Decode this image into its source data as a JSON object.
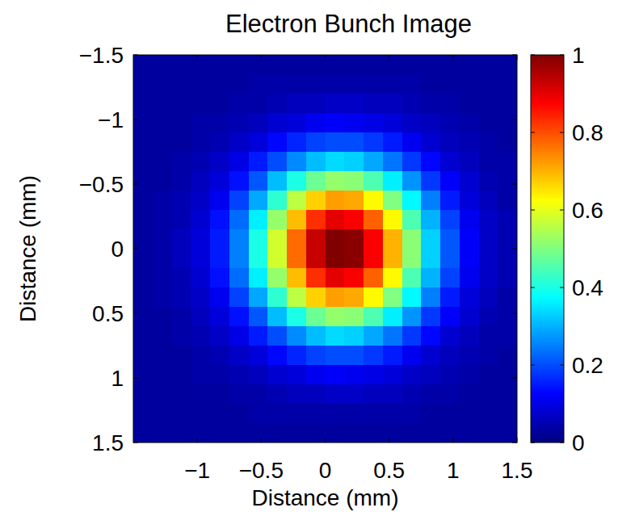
{
  "chart_data": {
    "type": "heatmap",
    "title": "Electron Bunch Image",
    "x_label": "Distance (mm)",
    "y_label": "Distance (mm)",
    "color": "jet",
    "xlim": [
      -1.5,
      1.5
    ],
    "ylim": [
      1.5,
      -1.5
    ],
    "xticks": [
      {
        "value": -1,
        "label": "−1"
      },
      {
        "value": -0.5,
        "label": "−0.5"
      },
      0,
      0.5,
      1,
      1.5
    ],
    "yticks": [
      {
        "value": -1.5,
        "label": "−1.5"
      },
      {
        "value": -1,
        "label": "−1"
      },
      {
        "value": -0.5,
        "label": "−0.5"
      },
      0,
      0.5,
      1,
      1.5
    ],
    "x": [
      -1.425,
      -1.275,
      -1.125,
      -0.975,
      -0.825,
      -0.675,
      -0.525,
      -0.375,
      -0.225,
      -0.075,
      0.075,
      0.225,
      0.375,
      0.525,
      0.675,
      0.825,
      0.975,
      1.125,
      1.275,
      1.425
    ],
    "y": [
      -1.425,
      -1.275,
      -1.125,
      -0.975,
      -0.825,
      -0.675,
      -0.525,
      -0.375,
      -0.225,
      -0.075,
      0.075,
      0.225,
      0.375,
      0.525,
      0.675,
      0.825,
      0.975,
      1.125,
      1.275,
      1.425
    ],
    "cells": [
      [
        0.03,
        0.03,
        0.03,
        0.03,
        0.03,
        0.03,
        0.03,
        0.03,
        0.03,
        0.03,
        0.03,
        0.03,
        0.03,
        0.03,
        0.03,
        0.03,
        0.03,
        0.03,
        0.03,
        0.03
      ],
      [
        0.03,
        0.03,
        0.03,
        0.03,
        0.03,
        0.03,
        0.04,
        0.04,
        0.04,
        0.04,
        0.04,
        0.04,
        0.04,
        0.04,
        0.04,
        0.03,
        0.03,
        0.03,
        0.03,
        0.03
      ],
      [
        0.03,
        0.03,
        0.03,
        0.03,
        0.03,
        0.04,
        0.04,
        0.05,
        0.06,
        0.06,
        0.07,
        0.07,
        0.06,
        0.06,
        0.05,
        0.04,
        0.04,
        0.03,
        0.03,
        0.03
      ],
      [
        0.03,
        0.03,
        0.03,
        0.04,
        0.04,
        0.05,
        0.06,
        0.08,
        0.09,
        0.11,
        0.12,
        0.11,
        0.1,
        0.09,
        0.07,
        0.06,
        0.05,
        0.04,
        0.03,
        0.03
      ],
      [
        0.03,
        0.03,
        0.03,
        0.04,
        0.05,
        0.07,
        0.09,
        0.13,
        0.16,
        0.19,
        0.2,
        0.2,
        0.18,
        0.15,
        0.11,
        0.08,
        0.06,
        0.05,
        0.04,
        0.03
      ],
      [
        0.03,
        0.03,
        0.04,
        0.05,
        0.07,
        0.1,
        0.15,
        0.2,
        0.26,
        0.31,
        0.34,
        0.33,
        0.29,
        0.24,
        0.18,
        0.13,
        0.08,
        0.06,
        0.04,
        0.04
      ],
      [
        0.03,
        0.03,
        0.04,
        0.06,
        0.09,
        0.14,
        0.21,
        0.31,
        0.4,
        0.48,
        0.52,
        0.51,
        0.45,
        0.36,
        0.27,
        0.18,
        0.12,
        0.08,
        0.05,
        0.04
      ],
      [
        0.03,
        0.04,
        0.05,
        0.07,
        0.11,
        0.19,
        0.29,
        0.42,
        0.56,
        0.67,
        0.72,
        0.71,
        0.63,
        0.5,
        0.37,
        0.25,
        0.15,
        0.09,
        0.06,
        0.04
      ],
      [
        0.03,
        0.04,
        0.05,
        0.08,
        0.14,
        0.23,
        0.36,
        0.52,
        0.69,
        0.83,
        0.9,
        0.88,
        0.78,
        0.63,
        0.45,
        0.3,
        0.19,
        0.11,
        0.07,
        0.05
      ],
      [
        0.03,
        0.04,
        0.06,
        0.09,
        0.15,
        0.25,
        0.4,
        0.58,
        0.77,
        0.93,
        1.0,
        0.99,
        0.88,
        0.7,
        0.51,
        0.33,
        0.21,
        0.12,
        0.07,
        0.05
      ],
      [
        0.03,
        0.04,
        0.06,
        0.09,
        0.15,
        0.25,
        0.4,
        0.58,
        0.77,
        0.93,
        1.0,
        0.99,
        0.88,
        0.7,
        0.51,
        0.33,
        0.21,
        0.12,
        0.07,
        0.05
      ],
      [
        0.03,
        0.04,
        0.05,
        0.08,
        0.14,
        0.23,
        0.36,
        0.52,
        0.69,
        0.83,
        0.9,
        0.88,
        0.78,
        0.63,
        0.45,
        0.3,
        0.19,
        0.11,
        0.07,
        0.05
      ],
      [
        0.03,
        0.04,
        0.05,
        0.07,
        0.11,
        0.19,
        0.29,
        0.42,
        0.56,
        0.67,
        0.72,
        0.71,
        0.63,
        0.5,
        0.37,
        0.25,
        0.15,
        0.09,
        0.06,
        0.04
      ],
      [
        0.03,
        0.03,
        0.04,
        0.06,
        0.09,
        0.14,
        0.21,
        0.31,
        0.4,
        0.48,
        0.52,
        0.51,
        0.45,
        0.36,
        0.27,
        0.18,
        0.12,
        0.08,
        0.05,
        0.04
      ],
      [
        0.03,
        0.03,
        0.04,
        0.05,
        0.07,
        0.1,
        0.15,
        0.2,
        0.26,
        0.31,
        0.34,
        0.33,
        0.29,
        0.24,
        0.18,
        0.13,
        0.08,
        0.06,
        0.04,
        0.04
      ],
      [
        0.03,
        0.03,
        0.03,
        0.04,
        0.05,
        0.07,
        0.09,
        0.13,
        0.16,
        0.19,
        0.2,
        0.2,
        0.18,
        0.15,
        0.11,
        0.08,
        0.06,
        0.05,
        0.04,
        0.03
      ],
      [
        0.03,
        0.03,
        0.03,
        0.04,
        0.04,
        0.05,
        0.06,
        0.08,
        0.09,
        0.11,
        0.12,
        0.11,
        0.1,
        0.09,
        0.07,
        0.06,
        0.05,
        0.04,
        0.03,
        0.03
      ],
      [
        0.03,
        0.03,
        0.03,
        0.03,
        0.03,
        0.04,
        0.04,
        0.05,
        0.06,
        0.06,
        0.07,
        0.07,
        0.06,
        0.06,
        0.05,
        0.04,
        0.04,
        0.03,
        0.03,
        0.03
      ],
      [
        0.03,
        0.03,
        0.03,
        0.03,
        0.03,
        0.03,
        0.04,
        0.04,
        0.04,
        0.04,
        0.04,
        0.04,
        0.04,
        0.04,
        0.04,
        0.03,
        0.03,
        0.03,
        0.03,
        0.03
      ],
      [
        0.03,
        0.03,
        0.03,
        0.03,
        0.03,
        0.03,
        0.03,
        0.03,
        0.03,
        0.03,
        0.03,
        0.03,
        0.03,
        0.03,
        0.03,
        0.03,
        0.03,
        0.03,
        0.03,
        0.03
      ]
    ],
    "colorbar_range": [
      0,
      1
    ],
    "colorbar_ticks": [
      0,
      0.2,
      0.4,
      0.6,
      0.8,
      1
    ]
  }
}
